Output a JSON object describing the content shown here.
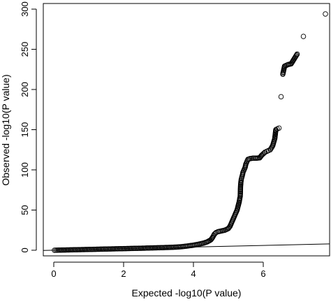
{
  "chart_data": {
    "type": "scatter",
    "title": "",
    "xlabel": "Expected -log10(P value)",
    "ylabel": "Observed -log10(P value)",
    "xlim": [
      -0.3,
      7.9
    ],
    "ylim": [
      -7,
      307
    ],
    "x_ticks": [
      0,
      2,
      4,
      6
    ],
    "y_ticks": [
      0,
      50,
      100,
      150,
      200,
      250,
      300
    ],
    "x_tick_labels": [
      "0",
      "2",
      "4",
      "6"
    ],
    "y_tick_labels": [
      "0",
      "50",
      "100",
      "150",
      "200",
      "250",
      "300"
    ],
    "grid": false,
    "legend": "none",
    "marker": "open-circle",
    "reference_line": {
      "type": "y=x",
      "from": [
        -0.3,
        -0.3
      ],
      "to": [
        7.9,
        7.9
      ]
    },
    "points": [
      [
        0.02,
        0.0
      ],
      [
        0.1,
        0.1
      ],
      [
        0.2,
        0.2
      ],
      [
        0.3,
        0.3
      ],
      [
        0.4,
        0.4
      ],
      [
        0.5,
        0.5
      ],
      [
        0.6,
        0.6
      ],
      [
        0.7,
        0.7
      ],
      [
        0.8,
        0.8
      ],
      [
        0.9,
        0.9
      ],
      [
        1.0,
        1.0
      ],
      [
        1.1,
        1.1
      ],
      [
        1.2,
        1.2
      ],
      [
        1.3,
        1.3
      ],
      [
        1.4,
        1.4
      ],
      [
        1.5,
        1.5
      ],
      [
        1.6,
        1.6
      ],
      [
        1.7,
        1.7
      ],
      [
        1.8,
        1.8
      ],
      [
        1.9,
        1.9
      ],
      [
        2.0,
        2.0
      ],
      [
        2.1,
        2.1
      ],
      [
        2.2,
        2.2
      ],
      [
        2.3,
        2.3
      ],
      [
        2.4,
        2.4
      ],
      [
        2.5,
        2.5
      ],
      [
        2.6,
        2.6
      ],
      [
        2.7,
        2.8
      ],
      [
        2.8,
        2.9
      ],
      [
        2.9,
        3.0
      ],
      [
        3.0,
        3.1
      ],
      [
        3.1,
        3.2
      ],
      [
        3.2,
        3.4
      ],
      [
        3.3,
        3.5
      ],
      [
        3.4,
        3.7
      ],
      [
        3.5,
        3.9
      ],
      [
        3.6,
        4.2
      ],
      [
        3.7,
        4.6
      ],
      [
        3.8,
        5.1
      ],
      [
        3.9,
        5.7
      ],
      [
        4.0,
        6.3
      ],
      [
        4.1,
        7.1
      ],
      [
        4.2,
        8.0
      ],
      [
        4.3,
        9.0
      ],
      [
        4.4,
        10.5
      ],
      [
        4.5,
        13.0
      ],
      [
        4.55,
        16.0
      ],
      [
        4.6,
        20.0
      ],
      [
        4.65,
        22.0
      ],
      [
        4.7,
        23.0
      ],
      [
        4.8,
        24.0
      ],
      [
        4.9,
        25.0
      ],
      [
        5.0,
        27.0
      ],
      [
        5.05,
        30.0
      ],
      [
        5.1,
        35.0
      ],
      [
        5.15,
        40.0
      ],
      [
        5.2,
        45.0
      ],
      [
        5.25,
        50.0
      ],
      [
        5.28,
        55.0
      ],
      [
        5.31,
        60.0
      ],
      [
        5.33,
        65.0
      ],
      [
        5.34,
        67.0
      ],
      [
        5.35,
        80.0
      ],
      [
        5.36,
        85.0
      ],
      [
        5.37,
        88.0
      ],
      [
        5.38,
        90.0
      ],
      [
        5.4,
        93.0
      ],
      [
        5.42,
        97.0
      ],
      [
        5.45,
        100.0
      ],
      [
        5.48,
        103.0
      ],
      [
        5.5,
        107.0
      ],
      [
        5.53,
        110.0
      ],
      [
        5.56,
        113.0
      ],
      [
        5.62,
        114.0
      ],
      [
        5.7,
        114.5
      ],
      [
        5.8,
        114.5
      ],
      [
        5.9,
        115.0
      ],
      [
        5.95,
        118.0
      ],
      [
        6.0,
        120.0
      ],
      [
        6.05,
        122.0
      ],
      [
        6.1,
        123.0
      ],
      [
        6.15,
        124.0
      ],
      [
        6.2,
        125.0
      ],
      [
        6.27,
        130.0
      ],
      [
        6.33,
        139.0
      ],
      [
        6.36,
        150.0
      ],
      [
        6.4,
        151.0
      ],
      [
        6.45,
        152.0
      ],
      [
        6.51,
        191.0
      ],
      [
        6.56,
        219.0
      ],
      [
        6.61,
        229.0
      ],
      [
        6.71,
        231.0
      ],
      [
        6.8,
        232.0
      ],
      [
        6.97,
        244.0
      ],
      [
        7.15,
        266.0
      ],
      [
        7.78,
        294.0
      ]
    ]
  }
}
